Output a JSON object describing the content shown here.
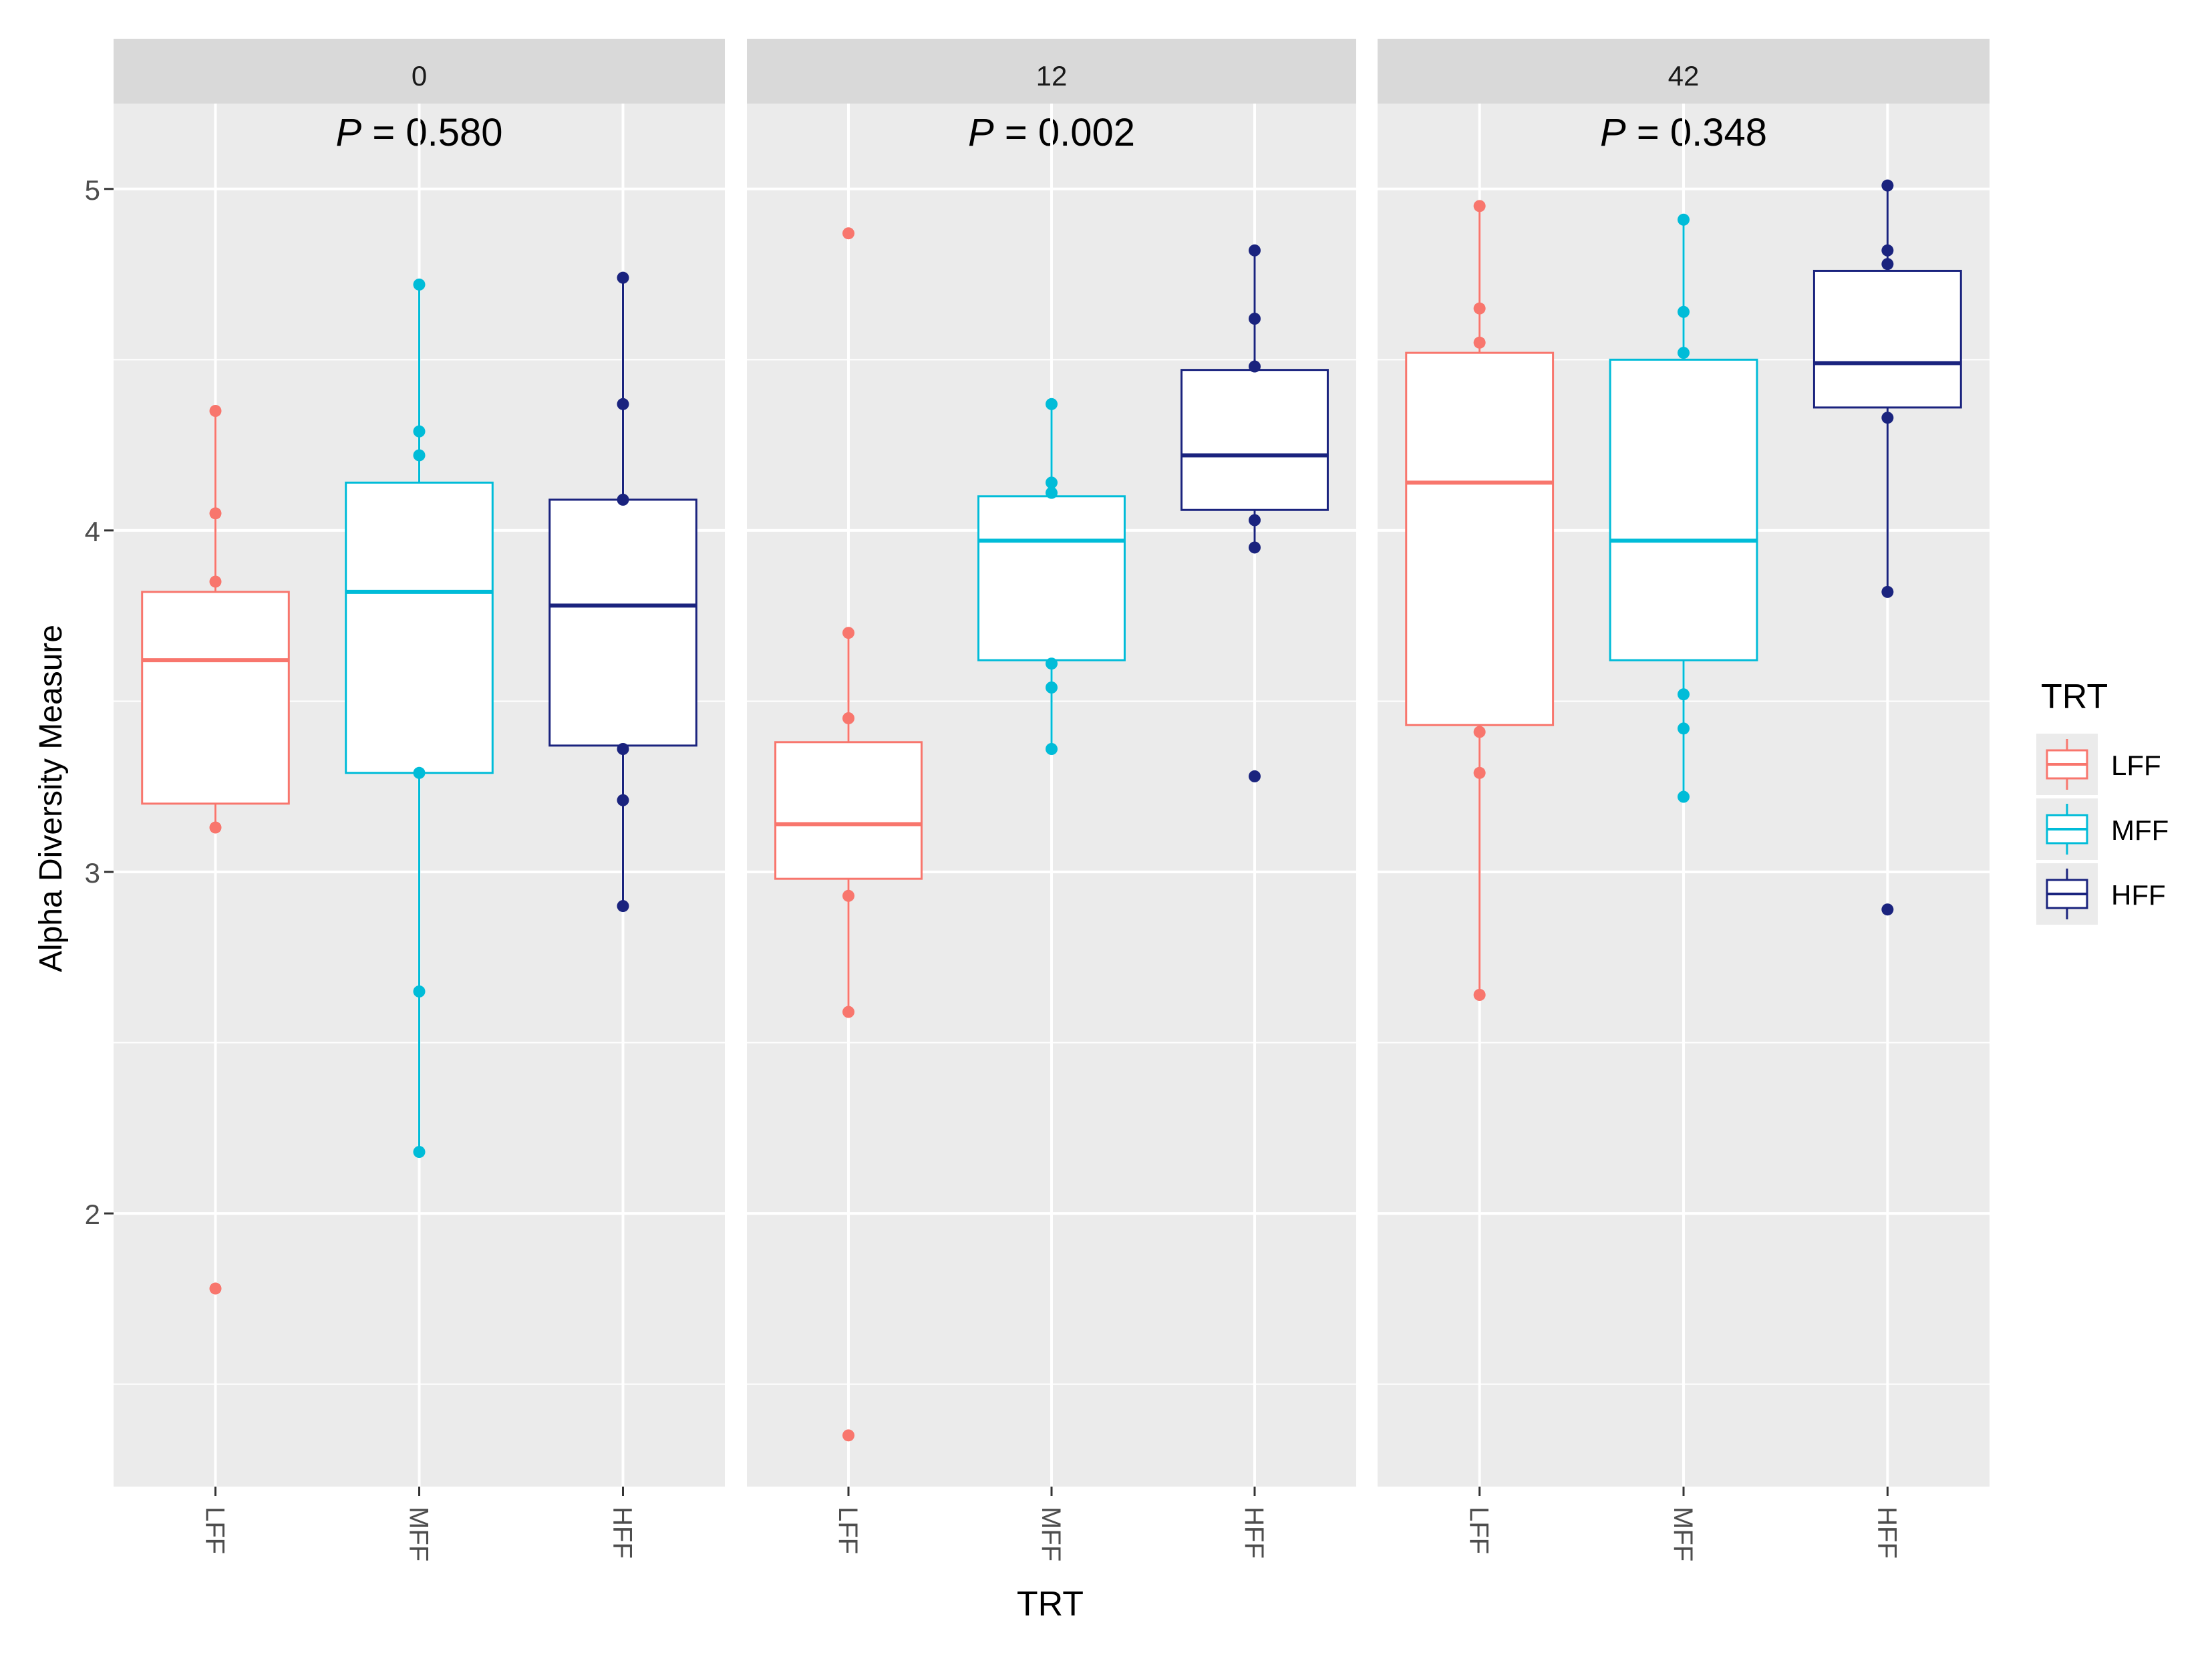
{
  "chart_data": {
    "type": "boxplot",
    "facet_variable": "days",
    "ylabel": "Alpha Diversity Measure",
    "xlabel": "TRT",
    "ylim": [
      1.2,
      5.25
    ],
    "yticks": [
      2,
      3,
      4,
      5
    ],
    "y_minor_gridlines": [
      1.5,
      2.5,
      3.5,
      4.5
    ],
    "categories": [
      "LFF",
      "MFF",
      "HFF"
    ],
    "legend": {
      "title": "TRT",
      "position": "right",
      "items": [
        {
          "label": "LFF",
          "color": "#F8766D"
        },
        {
          "label": "MFF",
          "color": "#00BCD8"
        },
        {
          "label": "HFF",
          "color": "#1A237E"
        }
      ]
    },
    "panels": [
      {
        "strip": "0",
        "p_prefix": "P",
        "p_rest": " = 0.580",
        "groups": [
          {
            "trt": "LFF",
            "whisker_low": 3.13,
            "q1": 3.2,
            "median": 3.62,
            "q3": 3.82,
            "whisker_high": 4.35,
            "points": [
              1.78,
              3.13,
              3.85,
              4.05,
              4.35
            ]
          },
          {
            "trt": "MFF",
            "whisker_low": 2.18,
            "q1": 3.29,
            "median": 3.82,
            "q3": 4.14,
            "whisker_high": 4.72,
            "points": [
              2.18,
              2.65,
              3.29,
              4.22,
              4.29,
              4.72
            ]
          },
          {
            "trt": "HFF",
            "whisker_low": 2.9,
            "q1": 3.37,
            "median": 3.78,
            "q3": 4.09,
            "whisker_high": 4.74,
            "points": [
              2.9,
              3.21,
              3.36,
              4.09,
              4.37,
              4.74
            ]
          }
        ]
      },
      {
        "strip": "12",
        "p_prefix": "P",
        "p_rest": " = 0.002",
        "groups": [
          {
            "trt": "LFF",
            "whisker_low": 2.59,
            "q1": 2.98,
            "median": 3.14,
            "q3": 3.38,
            "whisker_high": 3.7,
            "points": [
              1.35,
              2.59,
              2.93,
              3.45,
              3.7,
              4.87
            ]
          },
          {
            "trt": "MFF",
            "whisker_low": 3.36,
            "q1": 3.62,
            "median": 3.97,
            "q3": 4.1,
            "whisker_high": 4.37,
            "points": [
              3.36,
              3.54,
              3.61,
              4.11,
              4.14,
              4.37
            ]
          },
          {
            "trt": "HFF",
            "whisker_low": 3.95,
            "q1": 4.06,
            "median": 4.22,
            "q3": 4.47,
            "whisker_high": 4.82,
            "points": [
              3.28,
              3.95,
              4.03,
              4.48,
              4.62,
              4.82
            ]
          }
        ]
      },
      {
        "strip": "42",
        "p_prefix": "P",
        "p_rest": " = 0.348",
        "groups": [
          {
            "trt": "LFF",
            "whisker_low": 2.64,
            "q1": 3.43,
            "median": 4.14,
            "q3": 4.52,
            "whisker_high": 4.95,
            "points": [
              2.64,
              3.29,
              3.41,
              4.55,
              4.65,
              4.95
            ]
          },
          {
            "trt": "MFF",
            "whisker_low": 3.22,
            "q1": 3.62,
            "median": 3.97,
            "q3": 4.5,
            "whisker_high": 4.91,
            "points": [
              3.22,
              3.42,
              3.52,
              4.52,
              4.64,
              4.91
            ]
          },
          {
            "trt": "HFF",
            "whisker_low": 3.82,
            "q1": 4.36,
            "median": 4.49,
            "q3": 4.76,
            "whisker_high": 5.01,
            "points": [
              2.89,
              3.82,
              4.33,
              4.78,
              4.82,
              5.01
            ]
          }
        ]
      }
    ]
  }
}
